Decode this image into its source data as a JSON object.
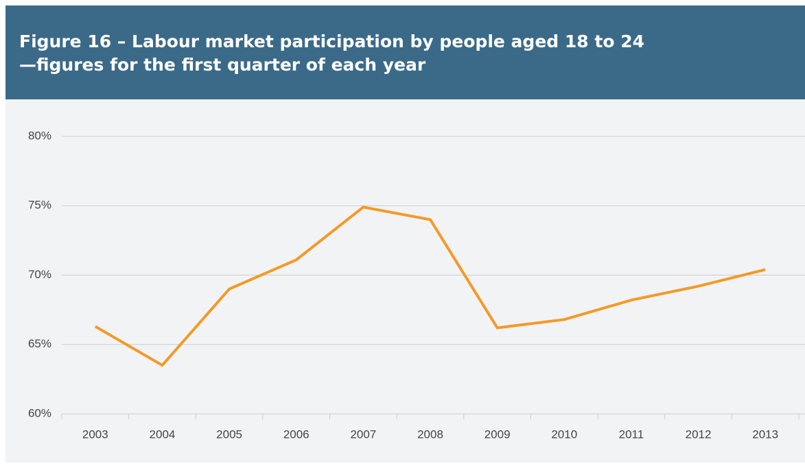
{
  "chart_data": {
    "type": "line",
    "title": [
      "Figure 16 – Labour market participation by people aged 18 to 24",
      "—figures for the first quarter of each year"
    ],
    "categories": [
      "2003",
      "2004",
      "2005",
      "2006",
      "2007",
      "2008",
      "2009",
      "2010",
      "2011",
      "2012",
      "2013"
    ],
    "series": [
      {
        "color": "#f39a27",
        "values": [
          66.3,
          63.5,
          69.0,
          71.1,
          74.9,
          74.0,
          66.2,
          66.8,
          68.2,
          69.2,
          70.4
        ]
      }
    ],
    "ylim": [
      60,
      80
    ],
    "yticks": [
      {
        "value": 60,
        "label": "60%"
      },
      {
        "value": 65,
        "label": "65%"
      },
      {
        "value": 70,
        "label": "70%"
      },
      {
        "value": 75,
        "label": "75%"
      },
      {
        "value": 80,
        "label": "80%"
      }
    ],
    "grid": true
  }
}
